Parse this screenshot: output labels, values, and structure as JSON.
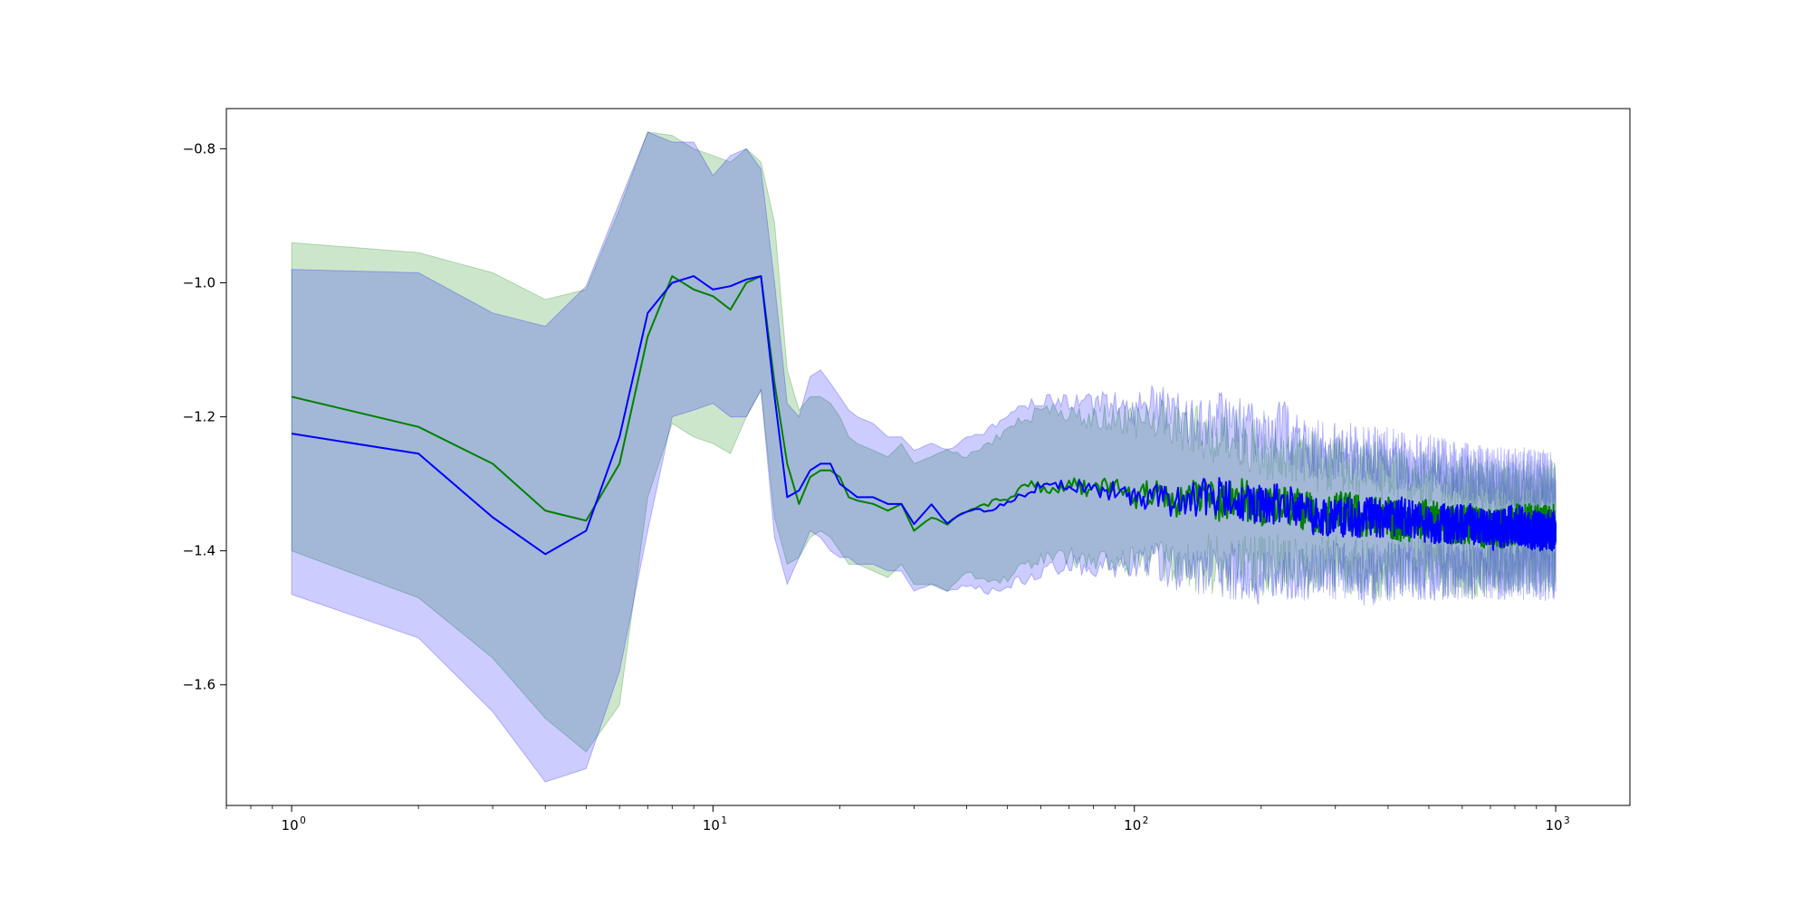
{
  "chart_data": {
    "type": "line",
    "title": "",
    "xlabel": "",
    "ylabel": "",
    "xscale": "log",
    "xlim": [
      0.7,
      1500
    ],
    "ylim": [
      -1.78,
      -0.74
    ],
    "grid": false,
    "legend": "none",
    "x_ticks": [
      {
        "value": 1,
        "base": "10",
        "exp": "0"
      },
      {
        "value": 10,
        "base": "10",
        "exp": "1"
      },
      {
        "value": 100,
        "base": "10",
        "exp": "2"
      },
      {
        "value": 1000,
        "base": "10",
        "exp": "3"
      }
    ],
    "y_ticks": [
      {
        "value": -1.6,
        "label": "−1.6"
      },
      {
        "value": -1.4,
        "label": "−1.4"
      },
      {
        "value": -1.2,
        "label": "−1.2"
      },
      {
        "value": -1.0,
        "label": "−1.0"
      },
      {
        "value": -0.8,
        "label": "−0.8"
      }
    ],
    "series": [
      {
        "color": "#008000",
        "band_color": "#008000",
        "band_opacity": 0.2,
        "x": [
          1,
          2,
          3,
          4,
          5,
          6,
          7,
          8,
          9,
          10,
          11,
          12,
          13,
          14,
          15,
          16,
          17,
          18,
          19,
          20,
          21,
          22,
          24,
          26,
          28,
          30,
          33,
          36,
          40,
          45,
          50,
          56,
          63,
          70,
          80,
          90,
          100,
          113,
          126,
          142,
          160,
          180,
          200,
          225,
          250,
          280,
          315,
          355,
          400,
          450,
          500,
          565,
          630,
          710,
          800,
          900,
          1000
        ],
        "y": [
          -1.17,
          -1.215,
          -1.27,
          -1.34,
          -1.355,
          -1.27,
          -1.08,
          -0.99,
          -1.01,
          -1.02,
          -1.04,
          -1.0,
          -0.99,
          -1.15,
          -1.27,
          -1.33,
          -1.29,
          -1.28,
          -1.28,
          -1.29,
          -1.32,
          -1.325,
          -1.33,
          -1.34,
          -1.33,
          -1.37,
          -1.35,
          -1.36,
          -1.34,
          -1.33,
          -1.32,
          -1.3,
          -1.31,
          -1.3,
          -1.31,
          -1.3,
          -1.32,
          -1.31,
          -1.33,
          -1.32,
          -1.33,
          -1.32,
          -1.34,
          -1.33,
          -1.34,
          -1.35,
          -1.34,
          -1.35,
          -1.35,
          -1.36,
          -1.35,
          -1.36,
          -1.36,
          -1.37,
          -1.36,
          -1.36,
          -1.36
        ],
        "lower": [
          -1.4,
          -1.47,
          -1.56,
          -1.65,
          -1.7,
          -1.63,
          -1.32,
          -1.21,
          -1.23,
          -1.24,
          -1.255,
          -1.2,
          -1.16,
          -1.35,
          -1.42,
          -1.41,
          -1.38,
          -1.37,
          -1.38,
          -1.4,
          -1.42,
          -1.42,
          -1.43,
          -1.44,
          -1.42,
          -1.45,
          -1.45,
          -1.46,
          -1.43,
          -1.45,
          -1.44,
          -1.42,
          -1.41,
          -1.41,
          -1.42,
          -1.42,
          -1.42,
          -1.41,
          -1.43,
          -1.42,
          -1.42,
          -1.42,
          -1.42,
          -1.42,
          -1.43,
          -1.42,
          -1.42,
          -1.43,
          -1.43,
          -1.42,
          -1.42,
          -1.43,
          -1.43,
          -1.42,
          -1.42,
          -1.42,
          -1.42
        ],
        "upper": [
          -0.94,
          -0.955,
          -0.985,
          -1.025,
          -1.01,
          -0.89,
          -0.775,
          -0.78,
          -0.8,
          -0.81,
          -0.82,
          -0.8,
          -0.82,
          -0.91,
          -1.13,
          -1.19,
          -1.17,
          -1.17,
          -1.18,
          -1.2,
          -1.23,
          -1.24,
          -1.25,
          -1.26,
          -1.24,
          -1.27,
          -1.26,
          -1.25,
          -1.26,
          -1.24,
          -1.22,
          -1.2,
          -1.19,
          -1.2,
          -1.2,
          -1.2,
          -1.21,
          -1.2,
          -1.22,
          -1.22,
          -1.23,
          -1.23,
          -1.25,
          -1.25,
          -1.26,
          -1.27,
          -1.27,
          -1.28,
          -1.28,
          -1.29,
          -1.29,
          -1.3,
          -1.3,
          -1.31,
          -1.31,
          -1.31,
          -1.31
        ]
      },
      {
        "color": "#0000ff",
        "band_color": "#0000ff",
        "band_opacity": 0.2,
        "x": [
          1,
          2,
          3,
          4,
          5,
          6,
          7,
          8,
          9,
          10,
          11,
          12,
          13,
          14,
          15,
          16,
          17,
          18,
          19,
          20,
          21,
          22,
          24,
          26,
          28,
          30,
          33,
          36,
          40,
          45,
          50,
          56,
          63,
          70,
          80,
          90,
          100,
          113,
          126,
          142,
          160,
          180,
          200,
          225,
          250,
          280,
          315,
          355,
          400,
          450,
          500,
          565,
          630,
          710,
          800,
          900,
          1000
        ],
        "y": [
          -1.225,
          -1.255,
          -1.35,
          -1.405,
          -1.37,
          -1.23,
          -1.045,
          -1.0,
          -0.99,
          -1.01,
          -1.005,
          -0.995,
          -0.99,
          -1.17,
          -1.32,
          -1.31,
          -1.28,
          -1.27,
          -1.27,
          -1.3,
          -1.31,
          -1.32,
          -1.32,
          -1.33,
          -1.33,
          -1.36,
          -1.33,
          -1.36,
          -1.34,
          -1.34,
          -1.33,
          -1.31,
          -1.3,
          -1.3,
          -1.31,
          -1.31,
          -1.32,
          -1.32,
          -1.33,
          -1.32,
          -1.32,
          -1.33,
          -1.33,
          -1.33,
          -1.34,
          -1.35,
          -1.35,
          -1.35,
          -1.35,
          -1.35,
          -1.36,
          -1.36,
          -1.36,
          -1.37,
          -1.36,
          -1.37,
          -1.37
        ],
        "lower": [
          -1.465,
          -1.53,
          -1.64,
          -1.745,
          -1.725,
          -1.58,
          -1.37,
          -1.2,
          -1.19,
          -1.18,
          -1.2,
          -1.2,
          -1.16,
          -1.38,
          -1.45,
          -1.41,
          -1.37,
          -1.38,
          -1.4,
          -1.41,
          -1.41,
          -1.42,
          -1.42,
          -1.43,
          -1.43,
          -1.46,
          -1.45,
          -1.46,
          -1.45,
          -1.46,
          -1.45,
          -1.44,
          -1.43,
          -1.42,
          -1.42,
          -1.42,
          -1.42,
          -1.42,
          -1.43,
          -1.43,
          -1.43,
          -1.43,
          -1.44,
          -1.43,
          -1.43,
          -1.43,
          -1.43,
          -1.44,
          -1.43,
          -1.43,
          -1.43,
          -1.43,
          -1.43,
          -1.43,
          -1.43,
          -1.43,
          -1.43
        ],
        "upper": [
          -0.98,
          -0.985,
          -1.045,
          -1.065,
          -1.005,
          -0.88,
          -0.775,
          -0.79,
          -0.79,
          -0.84,
          -0.81,
          -0.8,
          -0.83,
          -1.0,
          -1.18,
          -1.2,
          -1.14,
          -1.13,
          -1.15,
          -1.17,
          -1.19,
          -1.2,
          -1.21,
          -1.23,
          -1.23,
          -1.25,
          -1.24,
          -1.25,
          -1.23,
          -1.22,
          -1.2,
          -1.18,
          -1.17,
          -1.18,
          -1.18,
          -1.18,
          -1.19,
          -1.18,
          -1.2,
          -1.2,
          -1.2,
          -1.21,
          -1.22,
          -1.22,
          -1.24,
          -1.25,
          -1.25,
          -1.26,
          -1.26,
          -1.27,
          -1.27,
          -1.28,
          -1.28,
          -1.29,
          -1.29,
          -1.29,
          -1.3
        ]
      }
    ]
  }
}
